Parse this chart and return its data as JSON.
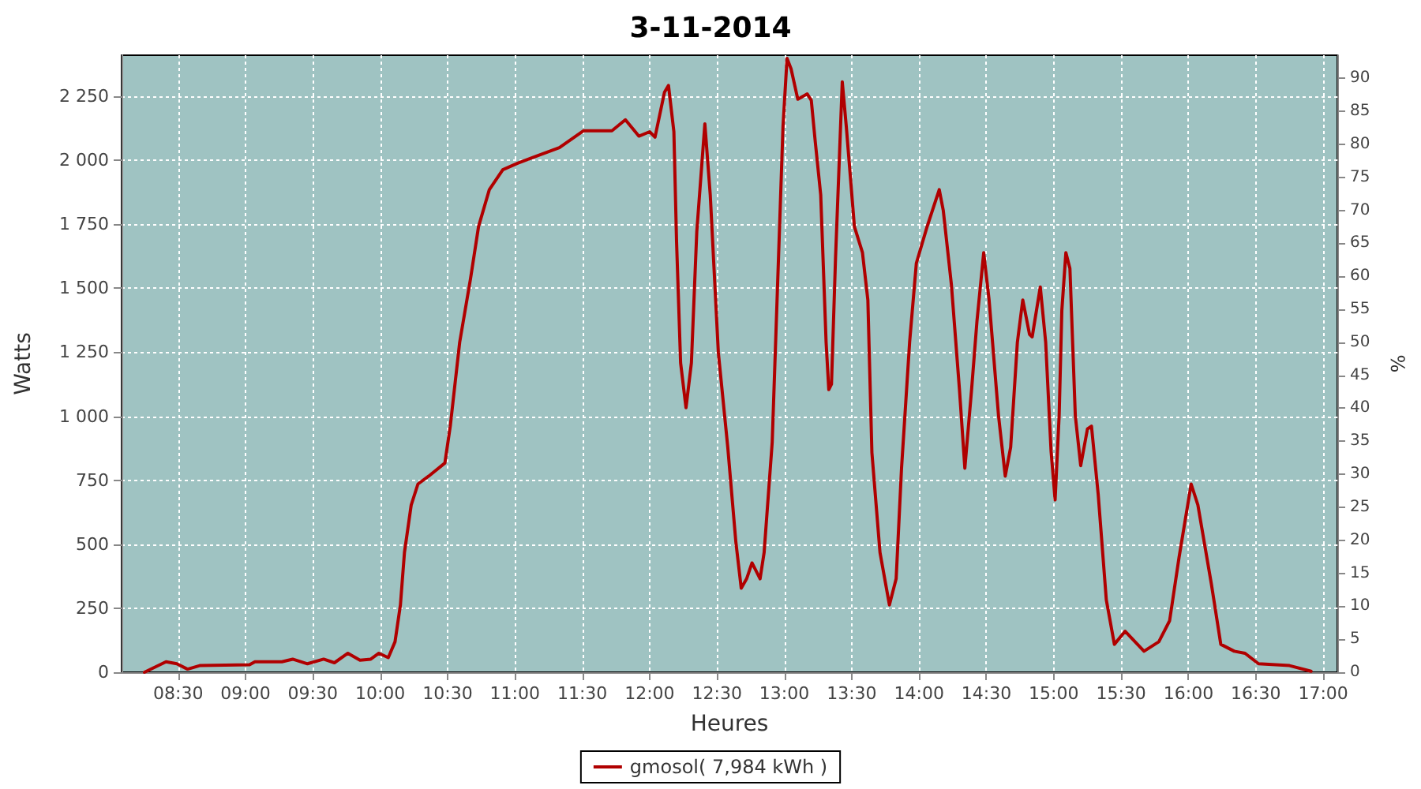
{
  "chart_data": {
    "type": "line",
    "title": "3-11-2014",
    "xlabel": "Heures",
    "ylabel": "Watts",
    "y2label": "%",
    "xlim": [
      8.08,
      17.105
    ],
    "xticks": [
      {
        "value": 8.5,
        "label": "08:30"
      },
      {
        "value": 9,
        "label": "09:00"
      },
      {
        "value": 9.5,
        "label": "09:30"
      },
      {
        "value": 10,
        "label": "10:00"
      },
      {
        "value": 10.5,
        "label": "10:30"
      },
      {
        "value": 11,
        "label": "11:00"
      },
      {
        "value": 11.5,
        "label": "11:30"
      },
      {
        "value": 12,
        "label": "12:00"
      },
      {
        "value": 12.5,
        "label": "12:30"
      },
      {
        "value": 13,
        "label": "13:00"
      },
      {
        "value": 13.5,
        "label": "13:30"
      },
      {
        "value": 14,
        "label": "14:00"
      },
      {
        "value": 14.5,
        "label": "14:30"
      },
      {
        "value": 15,
        "label": "15:00"
      },
      {
        "value": 15.5,
        "label": "15:30"
      },
      {
        "value": 16,
        "label": "16:00"
      },
      {
        "value": 16.5,
        "label": "16:30"
      },
      {
        "value": 17,
        "label": "17:00"
      }
    ],
    "ylim": [
      0,
      2410
    ],
    "yticks": [
      0,
      250,
      500,
      750,
      {
        "value": 1000,
        "label": "1 000"
      },
      {
        "value": 1250,
        "label": "1 250"
      },
      {
        "value": 1500,
        "label": "1 500"
      },
      {
        "value": 1750,
        "label": "1 750"
      },
      {
        "value": 2000,
        "label": "2 000"
      },
      {
        "value": 2250,
        "label": "2 250"
      }
    ],
    "y2lim": [
      0,
      93.5
    ],
    "y2ticks": [
      0,
      5,
      10,
      15,
      20,
      25,
      30,
      35,
      40,
      45,
      50,
      55,
      60,
      65,
      70,
      75,
      80,
      85,
      90
    ],
    "grid": true,
    "legend": "bottom",
    "marker": "none",
    "line_style": "solid",
    "series": [
      {
        "name": "gmosol( 7,984 kWh )",
        "color": "#b00000",
        "x": [
          8.25,
          8.41,
          8.49,
          8.57,
          8.66,
          9.03,
          9.07,
          9.27,
          9.35,
          9.46,
          9.58,
          9.66,
          9.76,
          9.85,
          9.93,
          9.99,
          10.06,
          10.11,
          10.15,
          10.18,
          10.23,
          10.28,
          10.36,
          10.48,
          10.52,
          10.59,
          10.67,
          10.73,
          10.81,
          10.91,
          11.02,
          11.14,
          11.33,
          11.51,
          11.72,
          11.82,
          11.92,
          12.0,
          12.04,
          12.11,
          12.14,
          12.18,
          12.2,
          12.23,
          12.27,
          12.31,
          12.35,
          12.41,
          12.45,
          12.51,
          12.58,
          12.64,
          12.68,
          12.72,
          12.76,
          12.82,
          12.85,
          12.91,
          12.95,
          12.99,
          13.02,
          13.05,
          13.1,
          13.17,
          13.2,
          13.23,
          13.27,
          13.31,
          13.33,
          13.35,
          13.38,
          13.41,
          13.43,
          13.46,
          13.52,
          13.58,
          13.62,
          13.65,
          13.71,
          13.78,
          13.83,
          13.87,
          13.93,
          13.98,
          14.06,
          14.15,
          14.18,
          14.24,
          14.3,
          14.34,
          14.39,
          14.43,
          14.48,
          14.52,
          14.59,
          14.64,
          14.68,
          14.73,
          14.77,
          14.82,
          14.84,
          14.9,
          14.94,
          14.98,
          15.01,
          15.04,
          15.06,
          15.09,
          15.12,
          15.16,
          15.2,
          15.25,
          15.28,
          15.33,
          15.39,
          15.45,
          15.53,
          15.67,
          15.78,
          15.86,
          15.93,
          16.02,
          16.07,
          16.17,
          16.24,
          16.34,
          16.42,
          16.52,
          16.75,
          16.91
        ],
        "values": [
          0,
          41,
          33,
          12,
          26,
          29,
          41,
          41,
          51,
          33,
          51,
          37,
          74,
          47,
          51,
          74,
          57,
          119,
          263,
          468,
          653,
          735,
          766,
          817,
          961,
          1289,
          1536,
          1741,
          1885,
          1963,
          1988,
          2012,
          2049,
          2115,
          2115,
          2158,
          2094,
          2111,
          2090,
          2265,
          2292,
          2111,
          1680,
          1208,
          1033,
          1208,
          1721,
          2142,
          1865,
          1249,
          879,
          509,
          328,
          365,
          427,
          365,
          468,
          899,
          1515,
          2131,
          2398,
          2357,
          2238,
          2259,
          2234,
          2070,
          1865,
          1289,
          1104,
          1125,
          1618,
          2029,
          2306,
          2131,
          1741,
          1639,
          1454,
          858,
          468,
          263,
          365,
          797,
          1289,
          1598,
          1741,
          1885,
          1803,
          1515,
          1104,
          797,
          1104,
          1372,
          1639,
          1454,
          1002,
          766,
          879,
          1289,
          1454,
          1320,
          1310,
          1505,
          1289,
          864,
          673,
          1002,
          1413,
          1639,
          1577,
          1002,
          807,
          950,
          961,
          694,
          283,
          109,
          160,
          82,
          119,
          201,
          448,
          735,
          653,
          345,
          109,
          82,
          74,
          33,
          26,
          4
        ]
      }
    ]
  }
}
